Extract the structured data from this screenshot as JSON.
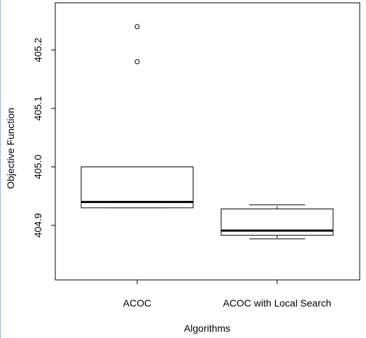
{
  "chart_data": {
    "type": "boxplot",
    "xlabel": "Algorithms",
    "ylabel": "Objective Function",
    "yticks": [
      404.9,
      405.0,
      405.1,
      405.2
    ],
    "ytick_labels": [
      "404.9",
      "405.0",
      "405.1",
      "405.2"
    ],
    "ylim": [
      404.86,
      405.255
    ],
    "grid": false,
    "categories": [
      "ACOC",
      "ACOC  with Local Search"
    ],
    "boxes": [
      {
        "label": "ACOC",
        "whisker_low": 404.93,
        "q1": 404.93,
        "median": 404.94,
        "q3": 405.0,
        "whisker_high": 405.0,
        "outliers": [
          405.18,
          405.24
        ]
      },
      {
        "label": "ACOC  with Local Search",
        "whisker_low": 404.877,
        "q1": 404.883,
        "median": 404.891,
        "q3": 404.928,
        "whisker_high": 404.935,
        "outliers": []
      }
    ]
  }
}
